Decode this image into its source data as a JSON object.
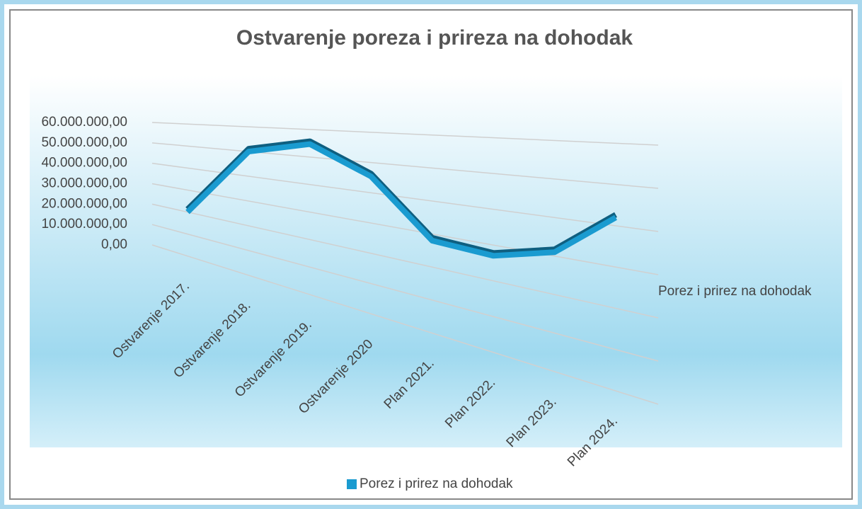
{
  "chart_data": {
    "type": "line",
    "title": "Ostvarenje poreza i prireza na dohodak",
    "categories": [
      "Ostvarenje 2017.",
      "Ostvarenje 2018.",
      "Ostvarenje 2019.",
      "Ostvarenje 2020",
      "Plan 2021.",
      "Plan 2022.",
      "Plan 2023.",
      "Plan 2024."
    ],
    "series": [
      {
        "name": "Porez i prirez na dohodak",
        "color": "#1a9bd0",
        "values": [
          20000000,
          50000000,
          54700000,
          45400000,
          28000000,
          27000000,
          31000000,
          42000000
        ]
      }
    ],
    "ylim": [
      0,
      60000000
    ],
    "yticks": [
      {
        "value": 0,
        "label": "0,00"
      },
      {
        "value": 10000000,
        "label": "10.000.000,00"
      },
      {
        "value": 20000000,
        "label": "20.000.000,00"
      },
      {
        "value": 30000000,
        "label": "30.000.000,00"
      },
      {
        "value": 40000000,
        "label": "40.000.000,00"
      },
      {
        "value": 50000000,
        "label": "50.000.000,00"
      },
      {
        "value": 60000000,
        "label": "60.000.000,00"
      }
    ],
    "grid": true,
    "legend": "bottom"
  }
}
